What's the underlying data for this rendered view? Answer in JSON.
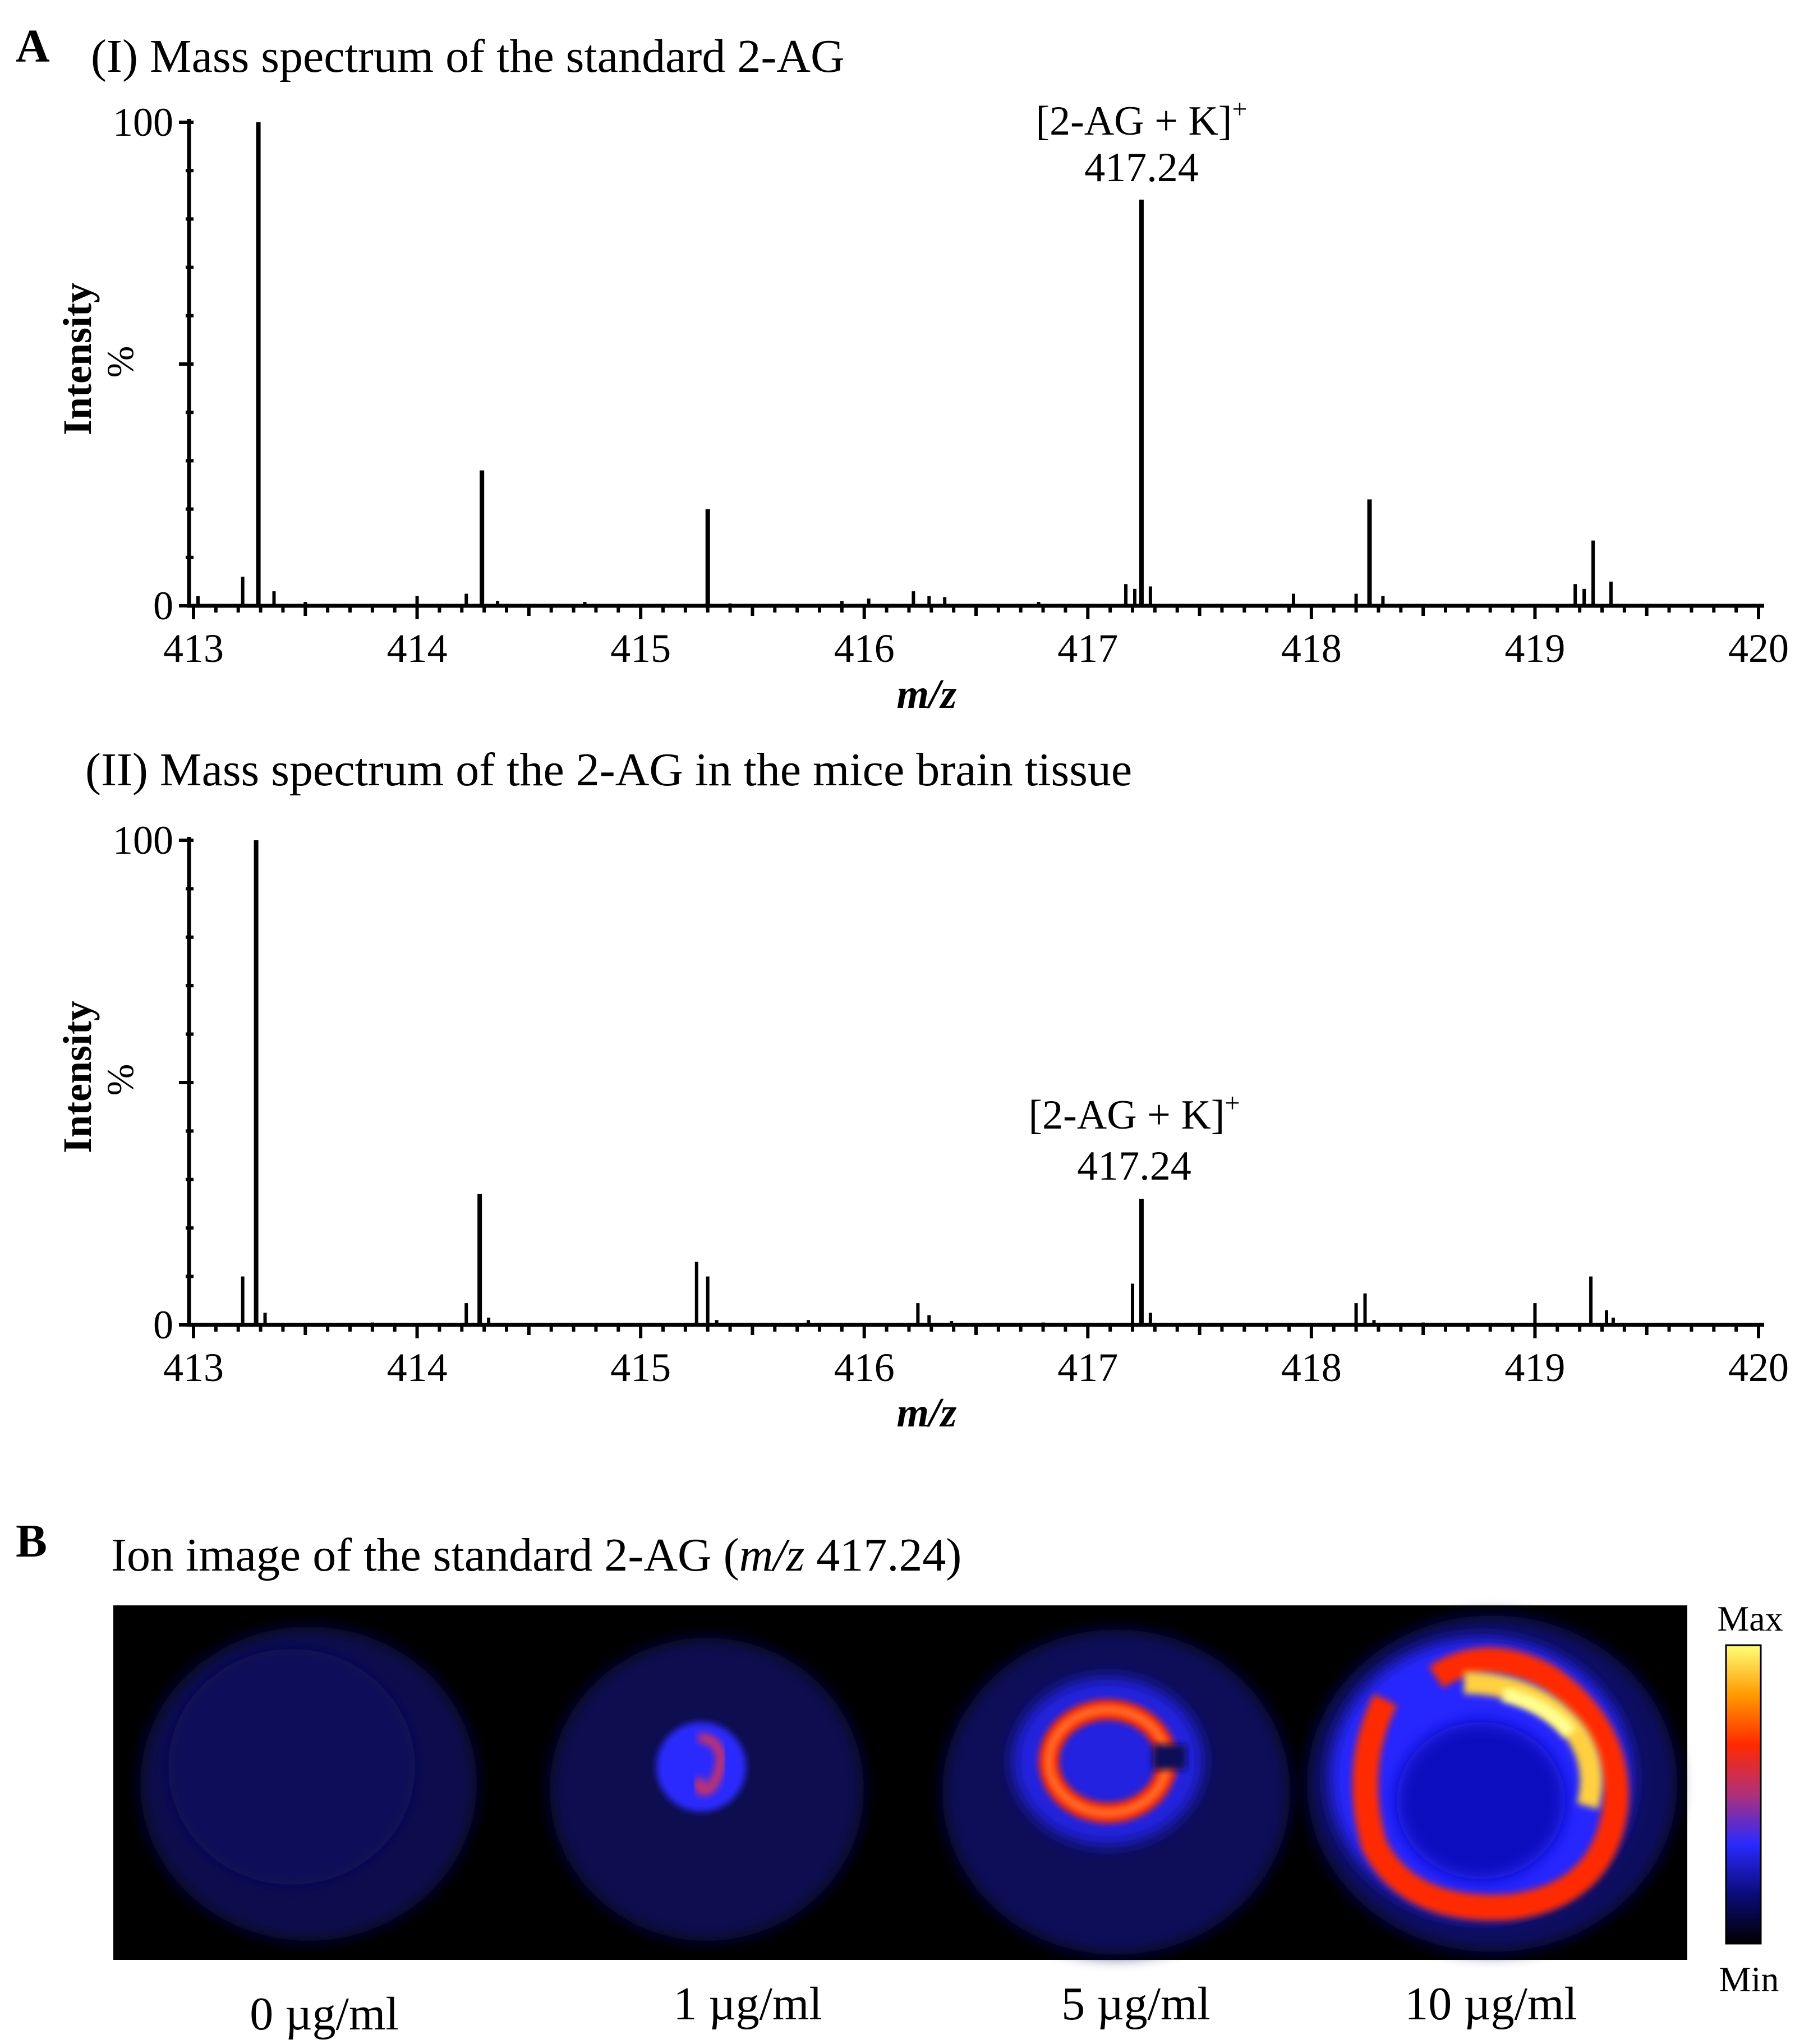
{
  "panel_labels": {
    "a": "A",
    "b": "B"
  },
  "chart_data": [
    {
      "type": "bar",
      "title": "(I) Mass spectrum of the standard 2-AG",
      "xlabel": "m/z",
      "ylabel": "Intensity",
      "ylabel_unit": "%",
      "xlim": [
        413,
        420
      ],
      "ylim": [
        0,
        100
      ],
      "xticks": [
        "413",
        "414",
        "415",
        "416",
        "417",
        "418",
        "419",
        "420"
      ],
      "yticks": [
        "0",
        "100"
      ],
      "annotation": {
        "text": "[2-AG + K]",
        "superscript": "+",
        "value": "417.24",
        "x": 417.24
      },
      "x": [
        413.02,
        413.22,
        413.29,
        413.36,
        413.5,
        414.0,
        414.22,
        414.29,
        414.36,
        414.75,
        415.3,
        415.4,
        415.9,
        416.02,
        416.22,
        416.29,
        416.36,
        416.78,
        417.17,
        417.21,
        417.24,
        417.28,
        417.92,
        418.2,
        418.26,
        418.32,
        419.18,
        419.22,
        419.26,
        419.34
      ],
      "values": [
        2,
        6,
        100,
        3,
        0.8,
        2,
        2.5,
        28,
        1,
        0.8,
        20,
        0.5,
        1,
        1.5,
        3,
        2,
        1.8,
        0.8,
        4.5,
        3.5,
        84,
        4,
        2.5,
        2.5,
        22,
        2,
        4.5,
        3.5,
        13.5,
        5
      ]
    },
    {
      "type": "bar",
      "title": "(II) Mass spectrum of the 2-AG in the mice brain tissue",
      "xlabel": "m/z",
      "ylabel": "Intensity",
      "ylabel_unit": "%",
      "xlim": [
        413,
        420
      ],
      "ylim": [
        0,
        100
      ],
      "xticks": [
        "413",
        "414",
        "415",
        "416",
        "417",
        "418",
        "419",
        "420"
      ],
      "yticks": [
        "0",
        "100"
      ],
      "annotation": {
        "text": "[2-AG + K]",
        "superscript": "+",
        "value": "417.24",
        "x": 417.24
      },
      "x": [
        413.22,
        413.28,
        413.32,
        413.8,
        414.22,
        414.28,
        414.32,
        415.25,
        415.3,
        415.34,
        415.75,
        416.24,
        416.29,
        416.39,
        416.8,
        417.2,
        417.24,
        417.28,
        418.2,
        418.24,
        418.28,
        418.5,
        419.0,
        419.25,
        419.32,
        419.35
      ],
      "values": [
        10,
        100,
        2.5,
        0.5,
        4.5,
        27,
        1.5,
        13,
        10,
        1,
        1,
        4.5,
        2,
        0.8,
        0.5,
        8.5,
        26,
        2.5,
        4.5,
        6.5,
        1,
        0.5,
        4.5,
        10,
        3,
        1.5
      ]
    },
    {
      "type": "heatmap",
      "title": "Ion image of the standard 2-AG (m/z 417.24)",
      "title_parts": {
        "prefix": "Ion image of the standard 2-AG (",
        "mz": "m/z",
        "suffix": " 417.24)"
      },
      "samples": [
        "0 µg/ml",
        "1 µg/ml",
        "5 µg/ml",
        "10 µg/ml"
      ],
      "relative_intensity": [
        0.05,
        0.4,
        0.75,
        0.95
      ],
      "colorbar": {
        "max_label": "Max",
        "min_label": "Min",
        "colors": [
          "#000000",
          "#0b0b7a",
          "#2a2aff",
          "#b0307a",
          "#ff2a00",
          "#ff9a00",
          "#ffff7a"
        ]
      }
    }
  ]
}
